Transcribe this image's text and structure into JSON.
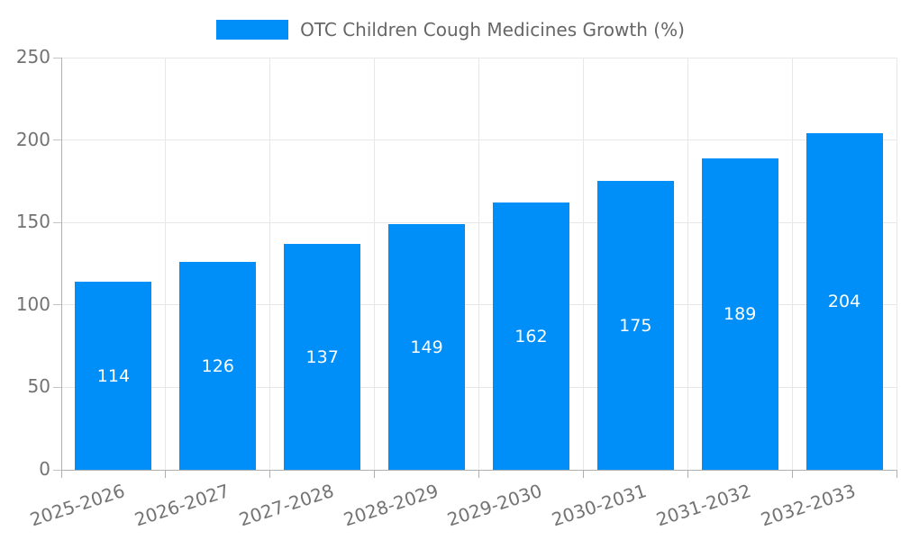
{
  "chart_data": {
    "type": "bar",
    "title": "OTC Children Cough Medicines Growth (%)",
    "categories": [
      "2025-2026",
      "2026-2027",
      "2027-2028",
      "2028-2029",
      "2029-2030",
      "2030-2031",
      "2031-2032",
      "2032-2033"
    ],
    "values": [
      114,
      126,
      137,
      149,
      162,
      175,
      189,
      204
    ],
    "xlabel": "",
    "ylabel": "",
    "ylim": [
      0,
      250
    ],
    "yticks": [
      0,
      50,
      100,
      150,
      200,
      250
    ],
    "grid": true,
    "legend_position": "top-center",
    "x_label_rotation_deg": -18,
    "bar_color": "#008ff8",
    "value_label_color": "#ffffff",
    "axis_text_color": "#737373",
    "legend_text_color": "#666666",
    "grid_color": "#e7e7e7",
    "axis_line_color": "#b0b0b0",
    "tick_color": "#c4c4c4",
    "background_color": "#ffffff"
  }
}
